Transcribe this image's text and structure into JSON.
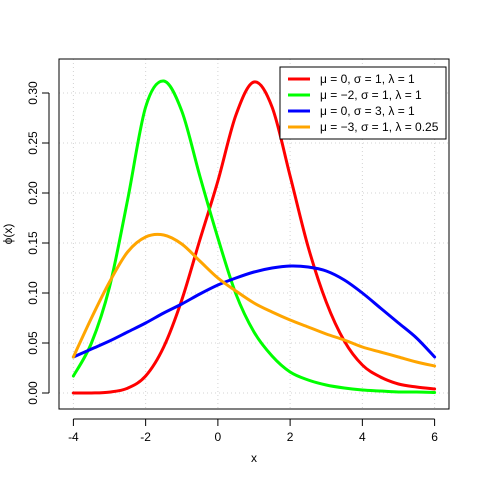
{
  "chart_data": {
    "type": "line",
    "title": "",
    "xlabel": "x",
    "ylabel": "ϕ(x)",
    "xlim": [
      -4,
      6
    ],
    "ylim": [
      0,
      0.33
    ],
    "x_ticks": [
      -4,
      -2,
      0,
      2,
      4,
      6
    ],
    "x_tick_labels": [
      "-4",
      "-2",
      "0",
      "2",
      "4",
      "6"
    ],
    "y_ticks": [
      0.0,
      0.05,
      0.1,
      0.15,
      0.2,
      0.25,
      0.3
    ],
    "y_tick_labels": [
      "0.00",
      "0.05",
      "0.10",
      "0.15",
      "0.20",
      "0.25",
      "0.30"
    ],
    "grid": true,
    "legend_position": "top-right",
    "x": [
      -4,
      -3.5,
      -3,
      -2.5,
      -2,
      -1.5,
      -1,
      -0.5,
      0,
      0.5,
      1,
      1.5,
      2,
      2.5,
      3,
      3.5,
      4,
      4.5,
      5,
      5.5,
      6
    ],
    "series": [
      {
        "name": "μ = 0, σ = 1, λ = 1",
        "color": "#ff0000",
        "values": [
          0.0,
          0.0,
          0.0009,
          0.0048,
          0.017,
          0.046,
          0.093,
          0.153,
          0.212,
          0.278,
          0.311,
          0.286,
          0.217,
          0.146,
          0.091,
          0.052,
          0.028,
          0.016,
          0.009,
          0.006,
          0.004
        ]
      },
      {
        "name": "μ = −2, σ = 1, λ = 1",
        "color": "#00ff00",
        "values": [
          0.017,
          0.05,
          0.106,
          0.193,
          0.286,
          0.312,
          0.282,
          0.217,
          0.155,
          0.099,
          0.061,
          0.037,
          0.021,
          0.013,
          0.008,
          0.005,
          0.003,
          0.002,
          0.001,
          0.001,
          0.0005
        ]
      },
      {
        "name": "μ = 0, σ = 3, λ = 1",
        "color": "#0000ff",
        "values": [
          0.036,
          0.044,
          0.052,
          0.061,
          0.07,
          0.08,
          0.089,
          0.099,
          0.108,
          0.115,
          0.121,
          0.125,
          0.127,
          0.126,
          0.122,
          0.113,
          0.1,
          0.085,
          0.07,
          0.055,
          0.036
        ]
      },
      {
        "name": "μ = −3, σ = 1, λ = 0.25",
        "color": "#ffa500",
        "values": [
          0.036,
          0.075,
          0.111,
          0.141,
          0.156,
          0.158,
          0.149,
          0.132,
          0.115,
          0.102,
          0.09,
          0.081,
          0.073,
          0.066,
          0.059,
          0.053,
          0.046,
          0.041,
          0.036,
          0.031,
          0.027
        ]
      }
    ]
  }
}
